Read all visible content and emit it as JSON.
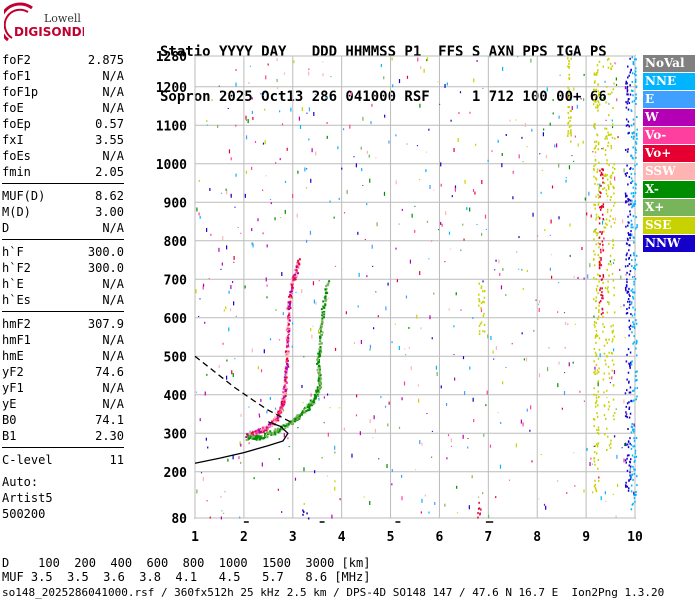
{
  "logo": {
    "line1": "Lowell",
    "line2": "DIGISONDE"
  },
  "header": {
    "row1": "Statio YYYY DAY   DDD HHMMSS P1  FFS S AXN PPS IGA PS",
    "row2": "Sopron 2025 Oct13 286 041000 RSF     1 712 100 00+ 66"
  },
  "params": {
    "group1": [
      {
        "label": "foF2",
        "value": "2.875"
      },
      {
        "label": "foF1",
        "value": "N/A"
      },
      {
        "label": "foF1p",
        "value": "N/A"
      },
      {
        "label": "foE",
        "value": "N/A"
      },
      {
        "label": "foEp",
        "value": "0.57"
      },
      {
        "label": "fxI",
        "value": "3.55"
      },
      {
        "label": "foEs",
        "value": "N/A"
      },
      {
        "label": "fmin",
        "value": "2.05"
      }
    ],
    "group2": [
      {
        "label": "MUF(D)",
        "value": "8.62"
      },
      {
        "label": "M(D)",
        "value": "3.00"
      },
      {
        "label": "D",
        "value": "N/A"
      }
    ],
    "group3": [
      {
        "label": "h`F",
        "value": "300.0"
      },
      {
        "label": "h`F2",
        "value": "300.0"
      },
      {
        "label": "h`E",
        "value": "N/A"
      },
      {
        "label": "h`Es",
        "value": "N/A"
      }
    ],
    "group4": [
      {
        "label": "hmF2",
        "value": "307.9"
      },
      {
        "label": "hmF1",
        "value": "N/A"
      },
      {
        "label": "hmE",
        "value": "N/A"
      },
      {
        "label": "yF2",
        "value": "74.6"
      },
      {
        "label": "yF1",
        "value": "N/A"
      },
      {
        "label": "yE",
        "value": "N/A"
      },
      {
        "label": "B0",
        "value": "74.1"
      },
      {
        "label": "B1",
        "value": "2.30"
      }
    ],
    "group5": [
      {
        "label": "C-level",
        "value": "11"
      }
    ]
  },
  "auto": {
    "line1": "Auto:",
    "line2": "Artist5",
    "line3": "500200"
  },
  "legend": [
    {
      "label": "NoVal",
      "color": "#808080"
    },
    {
      "label": "NNE",
      "color": "#00b4ff"
    },
    {
      "label": "E",
      "color": "#3fa0ff"
    },
    {
      "label": "W",
      "color": "#b400b4"
    },
    {
      "label": "Vo-",
      "color": "#ff3fa0"
    },
    {
      "label": "Vo+",
      "color": "#e60032"
    },
    {
      "label": "SSW",
      "color": "#ffb4b4"
    },
    {
      "label": "X-",
      "color": "#008c00"
    },
    {
      "label": "X+",
      "color": "#78b45a"
    },
    {
      "label": "SSE",
      "color": "#c8d200"
    },
    {
      "label": "NNW",
      "color": "#1400c8"
    }
  ],
  "chart_data": {
    "type": "scatter",
    "xlabel": "",
    "ylabel": "",
    "xlim": [
      1,
      10
    ],
    "ylim": [
      80,
      1280
    ],
    "x_ticks": [
      1,
      2,
      3,
      4,
      5,
      6,
      7,
      8,
      9,
      10
    ],
    "y_ticks": [
      80,
      200,
      300,
      400,
      500,
      600,
      700,
      800,
      900,
      1000,
      1100,
      1200,
      1280
    ],
    "grid": true,
    "traces": [
      {
        "name": "O-trace",
        "color": "#e60032",
        "points": [
          [
            2.05,
            298
          ],
          [
            2.2,
            303
          ],
          [
            2.4,
            312
          ],
          [
            2.6,
            330
          ],
          [
            2.7,
            350
          ],
          [
            2.78,
            380
          ],
          [
            2.83,
            420
          ],
          [
            2.86,
            480
          ],
          [
            2.88,
            550
          ],
          [
            2.9,
            620
          ],
          [
            2.95,
            680
          ],
          [
            3.05,
            720
          ],
          [
            3.1,
            750
          ]
        ]
      },
      {
        "name": "X-trace",
        "color": "#008c00",
        "points": [
          [
            2.05,
            290
          ],
          [
            2.3,
            292
          ],
          [
            2.6,
            305
          ],
          [
            2.9,
            325
          ],
          [
            3.1,
            345
          ],
          [
            3.3,
            370
          ],
          [
            3.45,
            395
          ],
          [
            3.55,
            430
          ],
          [
            3.5,
            480
          ],
          [
            3.55,
            540
          ],
          [
            3.6,
            620
          ],
          [
            3.7,
            700
          ]
        ]
      },
      {
        "name": "profile",
        "color": "#000000",
        "style": "solid",
        "points": [
          [
            1.0,
            222
          ],
          [
            1.5,
            235
          ],
          [
            2.0,
            250
          ],
          [
            2.5,
            268
          ],
          [
            2.8,
            280
          ],
          [
            2.9,
            300
          ],
          [
            2.75,
            318
          ],
          [
            2.5,
            330
          ]
        ]
      },
      {
        "name": "MUF-curve",
        "color": "#000000",
        "style": "dashed",
        "points": [
          [
            1.0,
            500
          ],
          [
            1.4,
            460
          ],
          [
            1.8,
            420
          ],
          [
            2.2,
            385
          ],
          [
            2.5,
            360
          ],
          [
            2.8,
            340
          ],
          [
            2.95,
            330
          ]
        ]
      }
    ]
  },
  "muf_table": {
    "d_label": "D",
    "d_values": [
      "100",
      "200",
      "400",
      "600",
      "800",
      "1000",
      "1500",
      "3000"
    ],
    "d_unit": "[km]",
    "muf_label": "MUF",
    "muf_values": [
      "3.5",
      "3.5",
      "3.6",
      "3.8",
      "4.1",
      "4.5",
      "5.7",
      "8.6"
    ],
    "muf_unit": "[MHz]"
  },
  "footer": "so148_2025286041000.rsf / 360fx512h 25 kHz 2.5 km / DPS-4D SO148 147 / 47.6 N 16.7 E  Ion2Png 1.3.20"
}
